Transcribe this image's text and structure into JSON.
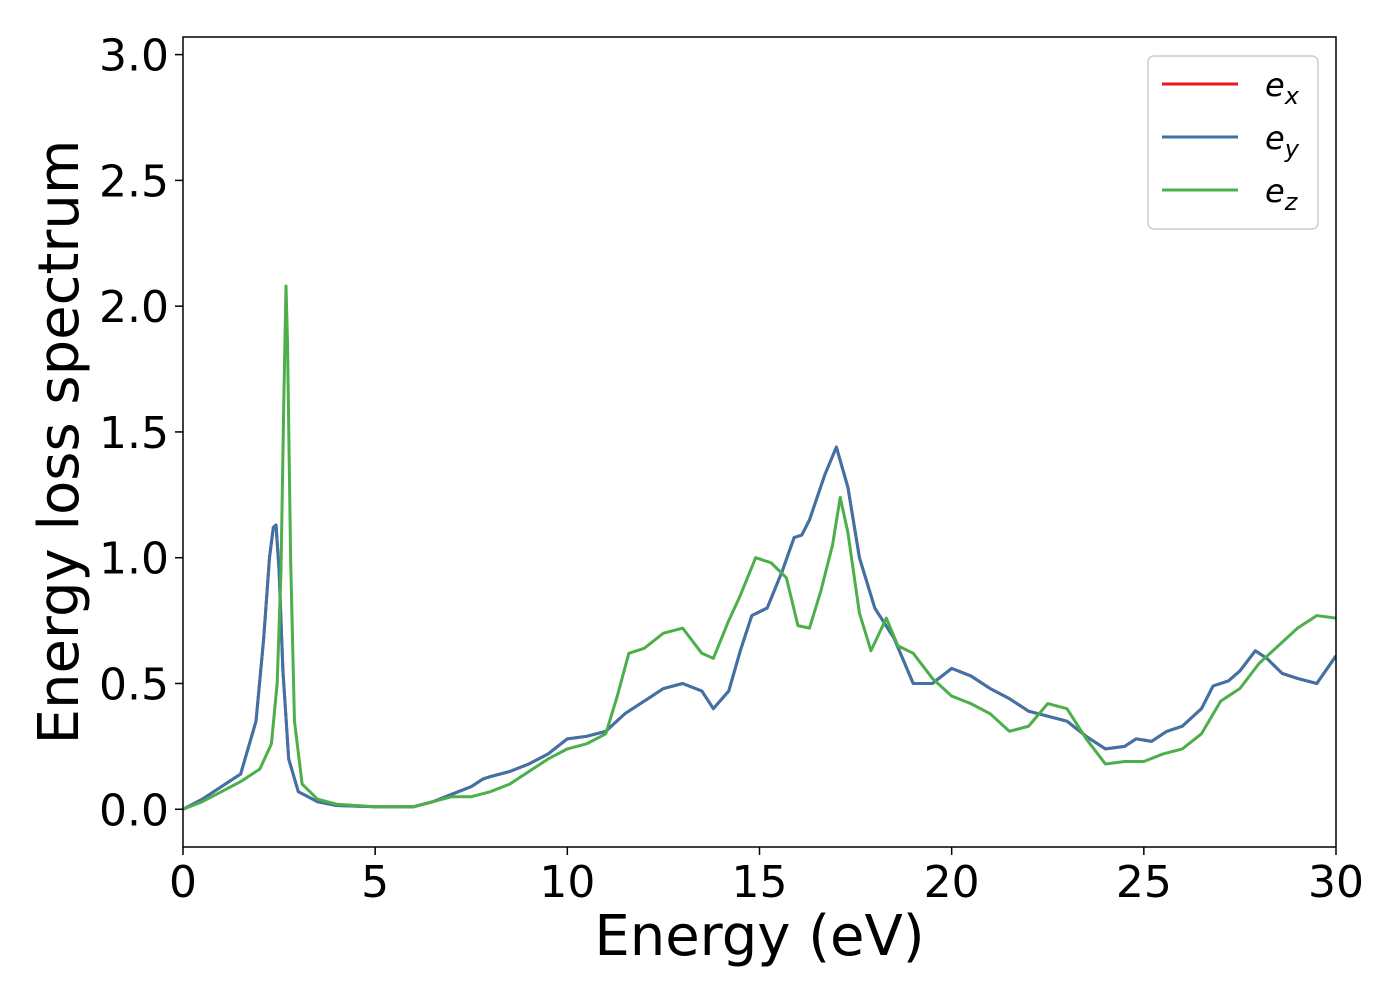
{
  "chart_data": {
    "type": "line",
    "title": "",
    "xlabel": "Energy (eV)",
    "ylabel": "Energy loss spectrum",
    "xlim": [
      0,
      30
    ],
    "ylim": [
      -0.15,
      3.07
    ],
    "xticks": [
      0,
      5,
      10,
      15,
      20,
      25,
      30
    ],
    "xtick_labels": [
      "0",
      "5",
      "10",
      "15",
      "20",
      "25",
      "30"
    ],
    "yticks": [
      0.0,
      0.5,
      1.0,
      1.5,
      2.0,
      2.5,
      3.0
    ],
    "ytick_labels": [
      "0.0",
      "0.5",
      "1.0",
      "1.5",
      "2.0",
      "2.5",
      "3.0"
    ],
    "grid": false,
    "legend_position": "top-right",
    "series": [
      {
        "name": "e_x",
        "legend_base": "e",
        "legend_sub": "x",
        "color": "#e41a1c",
        "x": [
          0,
          0.5,
          1.0,
          1.5,
          1.9,
          2.1,
          2.25,
          2.35,
          2.42,
          2.5,
          2.6,
          2.75,
          3.0,
          3.5,
          4.0,
          5.0,
          6.0,
          6.5,
          7.0,
          7.5,
          7.8,
          8.0,
          8.5,
          9.0,
          9.5,
          10.0,
          10.5,
          11.0,
          11.5,
          11.8,
          12.2,
          12.5,
          13.0,
          13.5,
          13.8,
          14.2,
          14.5,
          14.8,
          15.2,
          15.6,
          15.9,
          16.1,
          16.3,
          16.7,
          17.0,
          17.3,
          17.6,
          18.0,
          18.5,
          19.0,
          19.5,
          20.0,
          20.5,
          21.0,
          21.5,
          22.0,
          22.5,
          23.0,
          23.5,
          24.0,
          24.5,
          24.8,
          25.2,
          25.6,
          26.0,
          26.5,
          26.8,
          27.2,
          27.5,
          27.9,
          28.2,
          28.6,
          29.0,
          29.5,
          30.0
        ],
        "y": [
          0,
          0.04,
          0.09,
          0.14,
          0.35,
          0.68,
          1.0,
          1.12,
          1.13,
          0.95,
          0.55,
          0.2,
          0.07,
          0.03,
          0.015,
          0.01,
          0.01,
          0.03,
          0.06,
          0.09,
          0.12,
          0.13,
          0.15,
          0.18,
          0.22,
          0.28,
          0.29,
          0.31,
          0.38,
          0.41,
          0.45,
          0.48,
          0.5,
          0.47,
          0.4,
          0.47,
          0.63,
          0.77,
          0.8,
          0.95,
          1.08,
          1.09,
          1.15,
          1.33,
          1.44,
          1.28,
          1.0,
          0.8,
          0.68,
          0.5,
          0.5,
          0.56,
          0.53,
          0.48,
          0.44,
          0.39,
          0.37,
          0.35,
          0.29,
          0.24,
          0.25,
          0.28,
          0.27,
          0.31,
          0.33,
          0.4,
          0.49,
          0.51,
          0.55,
          0.63,
          0.6,
          0.54,
          0.52,
          0.5,
          0.61
        ]
      },
      {
        "name": "e_y",
        "legend_base": "e",
        "legend_sub": "y",
        "color": "#3d73a8",
        "x": [
          0,
          0.5,
          1.0,
          1.5,
          1.9,
          2.1,
          2.25,
          2.35,
          2.42,
          2.5,
          2.6,
          2.75,
          3.0,
          3.5,
          4.0,
          5.0,
          6.0,
          6.5,
          7.0,
          7.5,
          7.8,
          8.0,
          8.5,
          9.0,
          9.5,
          10.0,
          10.5,
          11.0,
          11.5,
          11.8,
          12.2,
          12.5,
          13.0,
          13.5,
          13.8,
          14.2,
          14.5,
          14.8,
          15.2,
          15.6,
          15.9,
          16.1,
          16.3,
          16.7,
          17.0,
          17.3,
          17.6,
          18.0,
          18.5,
          19.0,
          19.5,
          20.0,
          20.5,
          21.0,
          21.5,
          22.0,
          22.5,
          23.0,
          23.5,
          24.0,
          24.5,
          24.8,
          25.2,
          25.6,
          26.0,
          26.5,
          26.8,
          27.2,
          27.5,
          27.9,
          28.2,
          28.6,
          29.0,
          29.5,
          30.0
        ],
        "y": [
          0,
          0.04,
          0.09,
          0.14,
          0.35,
          0.68,
          1.0,
          1.12,
          1.13,
          0.95,
          0.55,
          0.2,
          0.07,
          0.03,
          0.015,
          0.01,
          0.01,
          0.03,
          0.06,
          0.09,
          0.12,
          0.13,
          0.15,
          0.18,
          0.22,
          0.28,
          0.29,
          0.31,
          0.38,
          0.41,
          0.45,
          0.48,
          0.5,
          0.47,
          0.4,
          0.47,
          0.63,
          0.77,
          0.8,
          0.95,
          1.08,
          1.09,
          1.15,
          1.33,
          1.44,
          1.28,
          1.0,
          0.8,
          0.68,
          0.5,
          0.5,
          0.56,
          0.53,
          0.48,
          0.44,
          0.39,
          0.37,
          0.35,
          0.29,
          0.24,
          0.25,
          0.28,
          0.27,
          0.31,
          0.33,
          0.4,
          0.49,
          0.51,
          0.55,
          0.63,
          0.6,
          0.54,
          0.52,
          0.5,
          0.61
        ]
      },
      {
        "name": "e_z",
        "legend_base": "e",
        "legend_sub": "z",
        "color": "#4daf4a",
        "x": [
          0,
          0.5,
          1.0,
          1.5,
          2.0,
          2.3,
          2.45,
          2.55,
          2.62,
          2.68,
          2.72,
          2.8,
          2.9,
          3.1,
          3.5,
          4.0,
          5.0,
          6.0,
          6.5,
          7.0,
          7.5,
          8.0,
          8.5,
          9.0,
          9.5,
          10.0,
          10.5,
          11.0,
          11.3,
          11.6,
          12.0,
          12.5,
          13.0,
          13.5,
          13.8,
          14.2,
          14.5,
          14.9,
          15.3,
          15.7,
          16.0,
          16.3,
          16.6,
          16.9,
          17.1,
          17.3,
          17.6,
          17.9,
          18.3,
          18.6,
          19.0,
          19.5,
          20.0,
          20.5,
          21.0,
          21.5,
          22.0,
          22.5,
          23.0,
          23.5,
          24.0,
          24.5,
          25.0,
          25.5,
          26.0,
          26.5,
          27.0,
          27.5,
          28.0,
          28.5,
          29.0,
          29.5,
          30.0
        ],
        "y": [
          0,
          0.03,
          0.07,
          0.11,
          0.16,
          0.26,
          0.5,
          0.95,
          1.6,
          2.08,
          1.85,
          1.0,
          0.35,
          0.1,
          0.04,
          0.02,
          0.01,
          0.01,
          0.03,
          0.05,
          0.05,
          0.07,
          0.1,
          0.15,
          0.2,
          0.24,
          0.26,
          0.3,
          0.45,
          0.62,
          0.64,
          0.7,
          0.72,
          0.62,
          0.6,
          0.75,
          0.85,
          1.0,
          0.98,
          0.92,
          0.73,
          0.72,
          0.87,
          1.05,
          1.24,
          1.1,
          0.78,
          0.63,
          0.76,
          0.65,
          0.62,
          0.52,
          0.45,
          0.42,
          0.38,
          0.31,
          0.33,
          0.42,
          0.4,
          0.28,
          0.18,
          0.19,
          0.19,
          0.22,
          0.24,
          0.3,
          0.43,
          0.48,
          0.58,
          0.65,
          0.72,
          0.77,
          0.76
        ]
      }
    ]
  }
}
